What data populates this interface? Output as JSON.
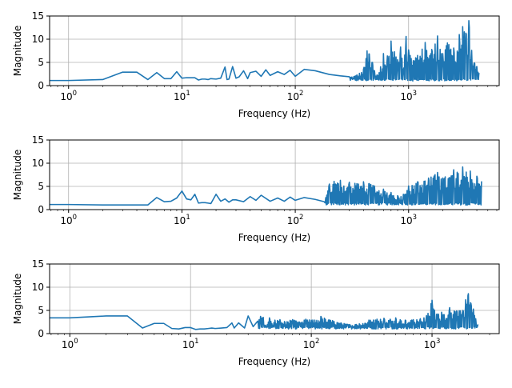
{
  "chart_data": [
    {
      "type": "line",
      "xscale": "log",
      "xlabel": "Frequency (Hz)",
      "ylabel": "Magnitude",
      "xlim": [
        0.68,
        6300
      ],
      "ylim": [
        0,
        15
      ],
      "xticks": [
        {
          "value": 1,
          "base": "10",
          "exp": "0"
        },
        {
          "value": 10,
          "base": "10",
          "exp": "1"
        },
        {
          "value": 100,
          "base": "10",
          "exp": "2"
        },
        {
          "value": 1000,
          "base": "10",
          "exp": "3"
        }
      ],
      "yticks": [
        0,
        5,
        10,
        15
      ],
      "grid": true,
      "color": "#1f77b4",
      "series": [
        {
          "x": [
            0.5,
            1,
            2,
            3,
            4,
            5,
            6,
            7,
            8,
            9,
            10,
            11,
            12,
            13,
            14,
            15,
            16,
            17,
            18,
            20,
            22,
            24,
            25,
            26,
            28,
            30,
            32,
            35,
            38,
            40,
            45,
            50,
            55,
            60,
            70,
            80,
            90,
            100,
            120,
            150,
            200,
            250,
            300,
            350,
            400,
            430,
            450,
            480,
            500,
            550,
            600,
            650,
            700,
            750,
            800,
            850,
            900,
            950,
            1000,
            1100,
            1200,
            1400,
            1600,
            1800,
            2000,
            2200,
            2500,
            2800,
            3000,
            3200,
            3400,
            3600,
            3800,
            4000,
            4200
          ],
          "y": [
            1.1,
            1.1,
            1.3,
            2.9,
            2.9,
            1.3,
            2.8,
            1.5,
            1.5,
            3.0,
            1.6,
            1.7,
            1.7,
            1.7,
            1.2,
            1.4,
            1.4,
            1.3,
            1.5,
            1.4,
            1.6,
            4.0,
            1.3,
            1.4,
            4.1,
            1.6,
            1.9,
            3.2,
            1.5,
            2.8,
            3.1,
            2.0,
            3.4,
            2.2,
            3.0,
            2.4,
            3.3,
            2.0,
            3.5,
            3.2,
            2.4,
            2.1,
            1.9,
            2.3,
            3.5,
            7.5,
            6.8,
            5.0,
            3.2,
            2.8,
            6.9,
            6.4,
            9.6,
            7.3,
            5.6,
            8.3,
            3.5,
            10.6,
            7.7,
            5.4,
            6.5,
            9.3,
            7.8,
            10.7,
            6.9,
            9.2,
            8.1,
            11.0,
            12.7,
            11.3,
            14.0,
            7.6,
            4.9,
            4.1,
            2.7
          ],
          "osc_low": 1.0,
          "osc_from": 280
        }
      ]
    },
    {
      "type": "line",
      "xscale": "log",
      "xlabel": "Frequency (Hz)",
      "ylabel": "Magnitude",
      "xlim": [
        0.68,
        6300
      ],
      "ylim": [
        0,
        15
      ],
      "xticks": [
        {
          "value": 1,
          "base": "10",
          "exp": "0"
        },
        {
          "value": 10,
          "base": "10",
          "exp": "1"
        },
        {
          "value": 100,
          "base": "10",
          "exp": "2"
        },
        {
          "value": 1000,
          "base": "10",
          "exp": "3"
        }
      ],
      "yticks": [
        0,
        5,
        10,
        15
      ],
      "grid": true,
      "color": "#1f77b4",
      "series": [
        {
          "x": [
            0.5,
            1,
            2,
            3,
            4,
            5,
            6,
            7,
            8,
            9,
            10,
            11,
            12,
            13,
            14,
            15,
            16,
            17,
            18,
            20,
            22,
            24,
            26,
            28,
            30,
            35,
            40,
            45,
            50,
            60,
            70,
            80,
            90,
            100,
            120,
            150,
            180,
            200,
            220,
            250,
            300,
            350,
            400,
            450,
            500,
            600,
            700,
            800,
            900,
            1000,
            1200,
            1500,
            1800,
            2000,
            2500,
            3000,
            3500,
            4000,
            4400
          ],
          "y": [
            1.1,
            1.1,
            1.0,
            1.0,
            1.0,
            1.0,
            2.6,
            1.7,
            1.8,
            2.5,
            4.0,
            2.3,
            2.1,
            3.3,
            1.4,
            1.5,
            1.5,
            1.4,
            1.3,
            3.3,
            1.8,
            2.3,
            1.6,
            2.1,
            2.1,
            1.7,
            2.8,
            2.0,
            3.1,
            1.8,
            2.5,
            1.8,
            2.7,
            2.0,
            2.6,
            2.2,
            1.7,
            5.5,
            6.1,
            6.3,
            5.9,
            5.6,
            6.0,
            5.6,
            5.1,
            4.4,
            3.7,
            3.0,
            3.3,
            5.1,
            6.0,
            6.8,
            8.0,
            6.8,
            8.6,
            9.2,
            8.3,
            7.2,
            6.1
          ],
          "osc_low": 1.0,
          "osc_from": 170
        }
      ]
    },
    {
      "type": "line",
      "xscale": "log",
      "xlabel": "Frequency (Hz)",
      "ylabel": "Magnitude",
      "xlim": [
        0.68,
        3600
      ],
      "ylim": [
        0,
        15
      ],
      "xticks": [
        {
          "value": 1,
          "base": "10",
          "exp": "0"
        },
        {
          "value": 10,
          "base": "10",
          "exp": "1"
        },
        {
          "value": 100,
          "base": "10",
          "exp": "2"
        },
        {
          "value": 1000,
          "base": "10",
          "exp": "3"
        }
      ],
      "yticks": [
        0,
        5,
        10,
        15
      ],
      "grid": true,
      "color": "#1f77b4",
      "series": [
        {
          "x": [
            0.5,
            1,
            2,
            3,
            4,
            5,
            6,
            7,
            8,
            9,
            10,
            11,
            12,
            13,
            14,
            15,
            16,
            18,
            20,
            22,
            23,
            25,
            28,
            30,
            33,
            36,
            38,
            40,
            42,
            45,
            48,
            50,
            55,
            60,
            70,
            80,
            90,
            100,
            120,
            150,
            200,
            250,
            300,
            350,
            400,
            450,
            500,
            600,
            700,
            800,
            900,
            1000,
            1100,
            1200,
            1400,
            1600,
            1800,
            1900,
            2000,
            2100,
            2200,
            2300,
            2400
          ],
          "y": [
            3.4,
            3.4,
            3.8,
            3.8,
            1.2,
            2.2,
            2.2,
            1.1,
            1.0,
            1.3,
            1.3,
            0.9,
            1.0,
            1.0,
            1.1,
            1.2,
            1.1,
            1.2,
            1.3,
            2.3,
            1.2,
            2.3,
            1.2,
            3.8,
            1.5,
            2.7,
            3.7,
            3.5,
            1.6,
            3.4,
            1.8,
            2.9,
            3.0,
            2.6,
            3.0,
            2.5,
            3.1,
            2.9,
            3.7,
            2.8,
            2.0,
            2.1,
            2.9,
            3.1,
            3.3,
            3.1,
            3.4,
            2.9,
            3.0,
            3.2,
            3.9,
            7.2,
            4.2,
            4.6,
            5.6,
            4.9,
            5.0,
            7.3,
            8.6,
            6.5,
            5.3,
            3.2,
            2.0
          ],
          "osc_low": 1.0,
          "osc_from": 35
        }
      ]
    }
  ]
}
